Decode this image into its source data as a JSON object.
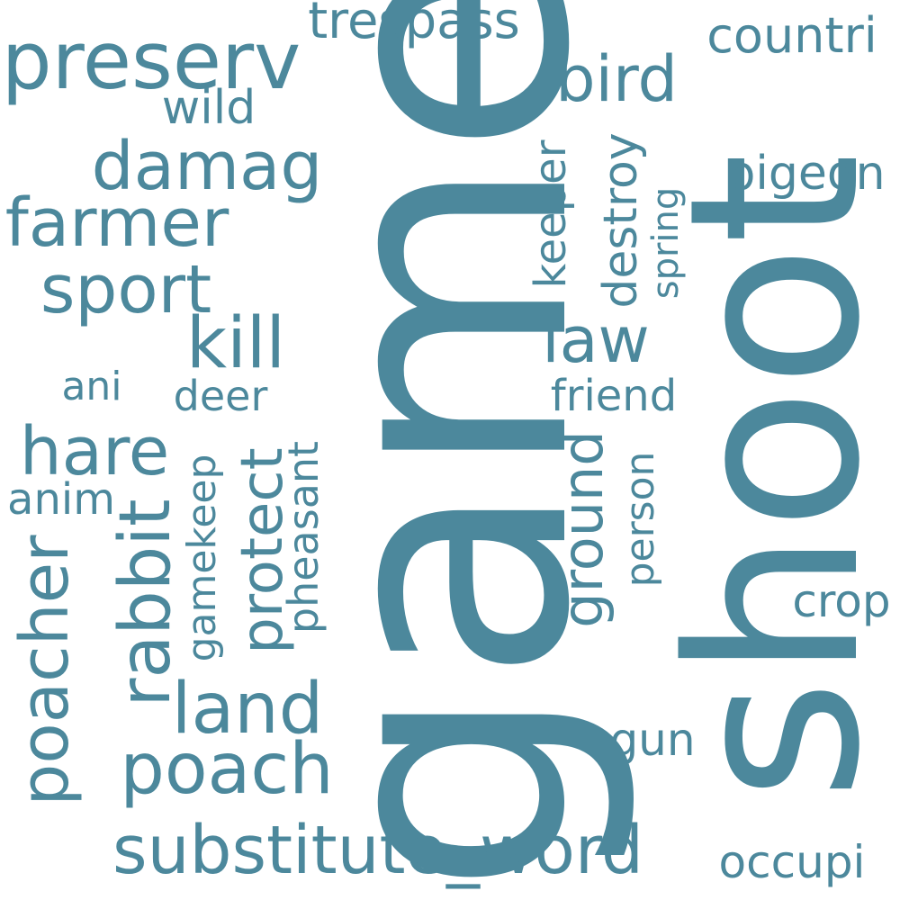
{
  "word_color": "#4c889c",
  "background": "#ffffff",
  "words": {
    "game": "game",
    "shoot": "shoot",
    "preserv": "preserv",
    "trespass": "trespass",
    "countri": "countri",
    "bird": "bird",
    "wild": "wild",
    "damag": "damag",
    "farmer": "farmer",
    "sport": "sport",
    "kill": "kill",
    "keeper": "keeper",
    "destroy": "destroy",
    "spring": "spring",
    "pigeon": "pigeon",
    "law": "law",
    "ani": "ani",
    "deer": "deer",
    "friend": "friend",
    "hare": "hare",
    "anim": "anim",
    "rabbit": "rabbit",
    "gamekeep": "gamekeep",
    "protect": "protect",
    "pheasant": "pheasant",
    "ground": "ground",
    "person": "person",
    "crop": "crop",
    "poacher": "poacher",
    "land": "land",
    "poach": "poach",
    "gun": "gun",
    "substitute_word": "substitute_word",
    "occupi": "occupi"
  }
}
